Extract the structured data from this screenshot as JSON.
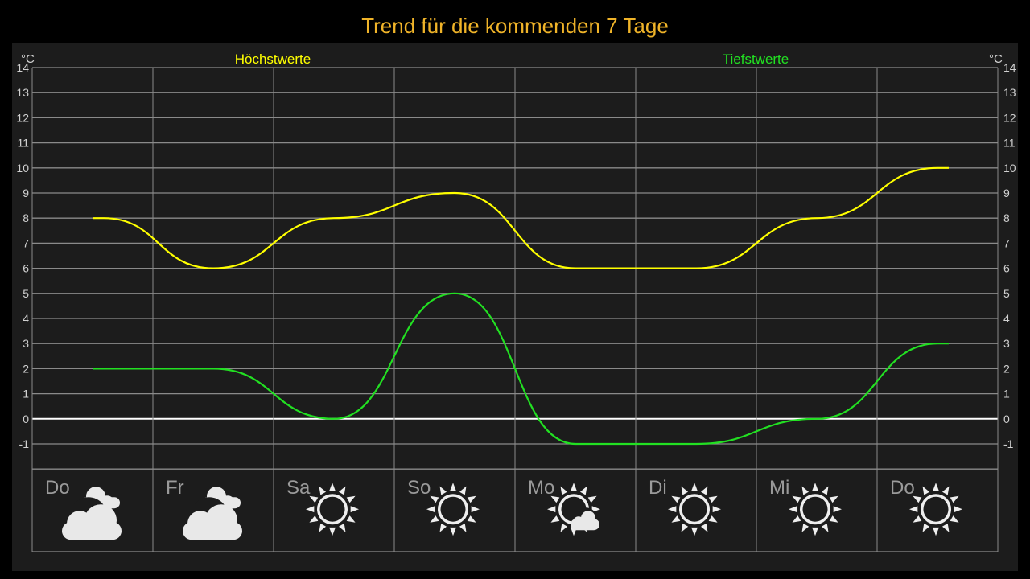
{
  "title": "Trend für die kommenden 7 Tage",
  "legend": {
    "high_label": "Höchstwerte",
    "low_label": "Tiefstwerte"
  },
  "unit": "°C",
  "colors": {
    "high": "#ffff00",
    "low": "#22e022",
    "title": "#f0b429",
    "zero_line": "#ffffff",
    "grid": "#8a8a8a",
    "background": "#1c1c1c"
  },
  "chart_data": {
    "type": "line",
    "title": "Trend für die kommenden 7 Tage",
    "categories": [
      "Do",
      "Fr",
      "Sa",
      "So",
      "Mo",
      "Di",
      "Mi",
      "Do"
    ],
    "series": [
      {
        "name": "Höchstwerte",
        "values": [
          8,
          6,
          8,
          9,
          6,
          6,
          8,
          10
        ]
      },
      {
        "name": "Tiefstwerte",
        "values": [
          2,
          2,
          0,
          5,
          -1,
          -1,
          0,
          3
        ]
      }
    ],
    "ylim": [
      -2,
      14
    ],
    "y_ticks": [
      14,
      13,
      12,
      11,
      10,
      9,
      8,
      7,
      6,
      5,
      4,
      3,
      2,
      1,
      0,
      -1
    ],
    "ylabel": "°C",
    "grid": true
  },
  "days": [
    {
      "label": "Do",
      "icon": "cloudy-icon"
    },
    {
      "label": "Fr",
      "icon": "cloudy-icon"
    },
    {
      "label": "Sa",
      "icon": "sun-icon"
    },
    {
      "label": "So",
      "icon": "sun-icon"
    },
    {
      "label": "Mo",
      "icon": "sun-partly-cloudy-icon"
    },
    {
      "label": "Di",
      "icon": "sun-icon"
    },
    {
      "label": "Mi",
      "icon": "sun-icon"
    },
    {
      "label": "Do",
      "icon": "sun-icon"
    }
  ]
}
